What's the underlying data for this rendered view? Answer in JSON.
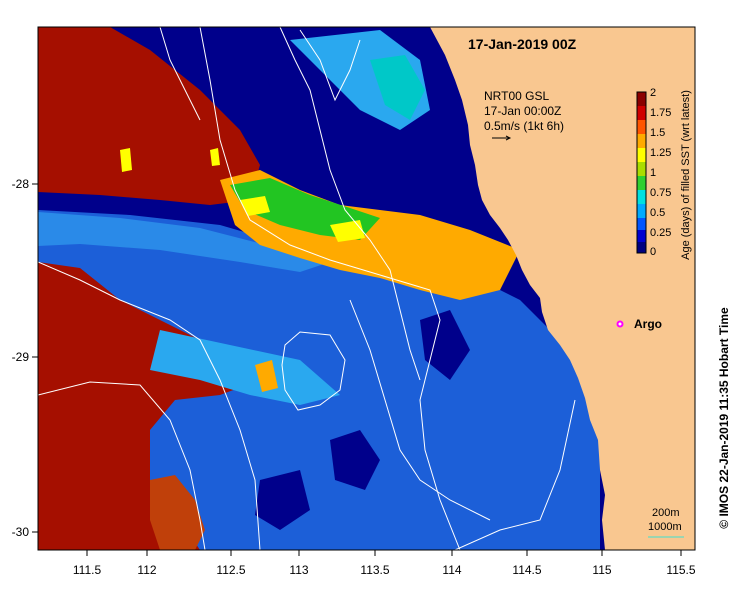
{
  "map": {
    "title": "17-Jan-2019 00Z",
    "legend": {
      "line1": "NRT00 GSL",
      "line2": "17-Jan 00:00Z",
      "line3": "0.5m/s (1kt 6h)"
    },
    "colorbar": {
      "label": "Age (days) of filled SST (wrt latest)",
      "ticks": [
        "2",
        "1.75",
        "1.5",
        "1.25",
        "1",
        "0.75",
        "0.5",
        "0.25",
        "0"
      ],
      "colors": [
        "#000080",
        "#0000d0",
        "#0055ff",
        "#00aaff",
        "#00e0e0",
        "#30d030",
        "#aadd00",
        "#ffff00",
        "#ffaa00",
        "#ff5500",
        "#d00000",
        "#8b0000"
      ]
    },
    "credit": "©  IMOS 22-Jan-2019 11:35 Hobart Time",
    "argo_label": "Argo",
    "contours": {
      "label_200": "200m",
      "label_1000": "1000m"
    },
    "x_ticks": [
      "111.5",
      "112",
      "112.5",
      "113",
      "113.5",
      "114",
      "114.5",
      "115",
      "115.5"
    ],
    "y_ticks": [
      "-28",
      "-29",
      "-30"
    ],
    "colors": {
      "land": "#f9c790",
      "old_sst": "#a50f00",
      "deep_blue": "#00008b",
      "mid_blue": "#1c5fd8",
      "light_blue": "#2aa8ef",
      "orange": "#ffaa00",
      "green": "#22c522",
      "yellow": "#ffff00",
      "argo": "#ff00ff"
    }
  }
}
